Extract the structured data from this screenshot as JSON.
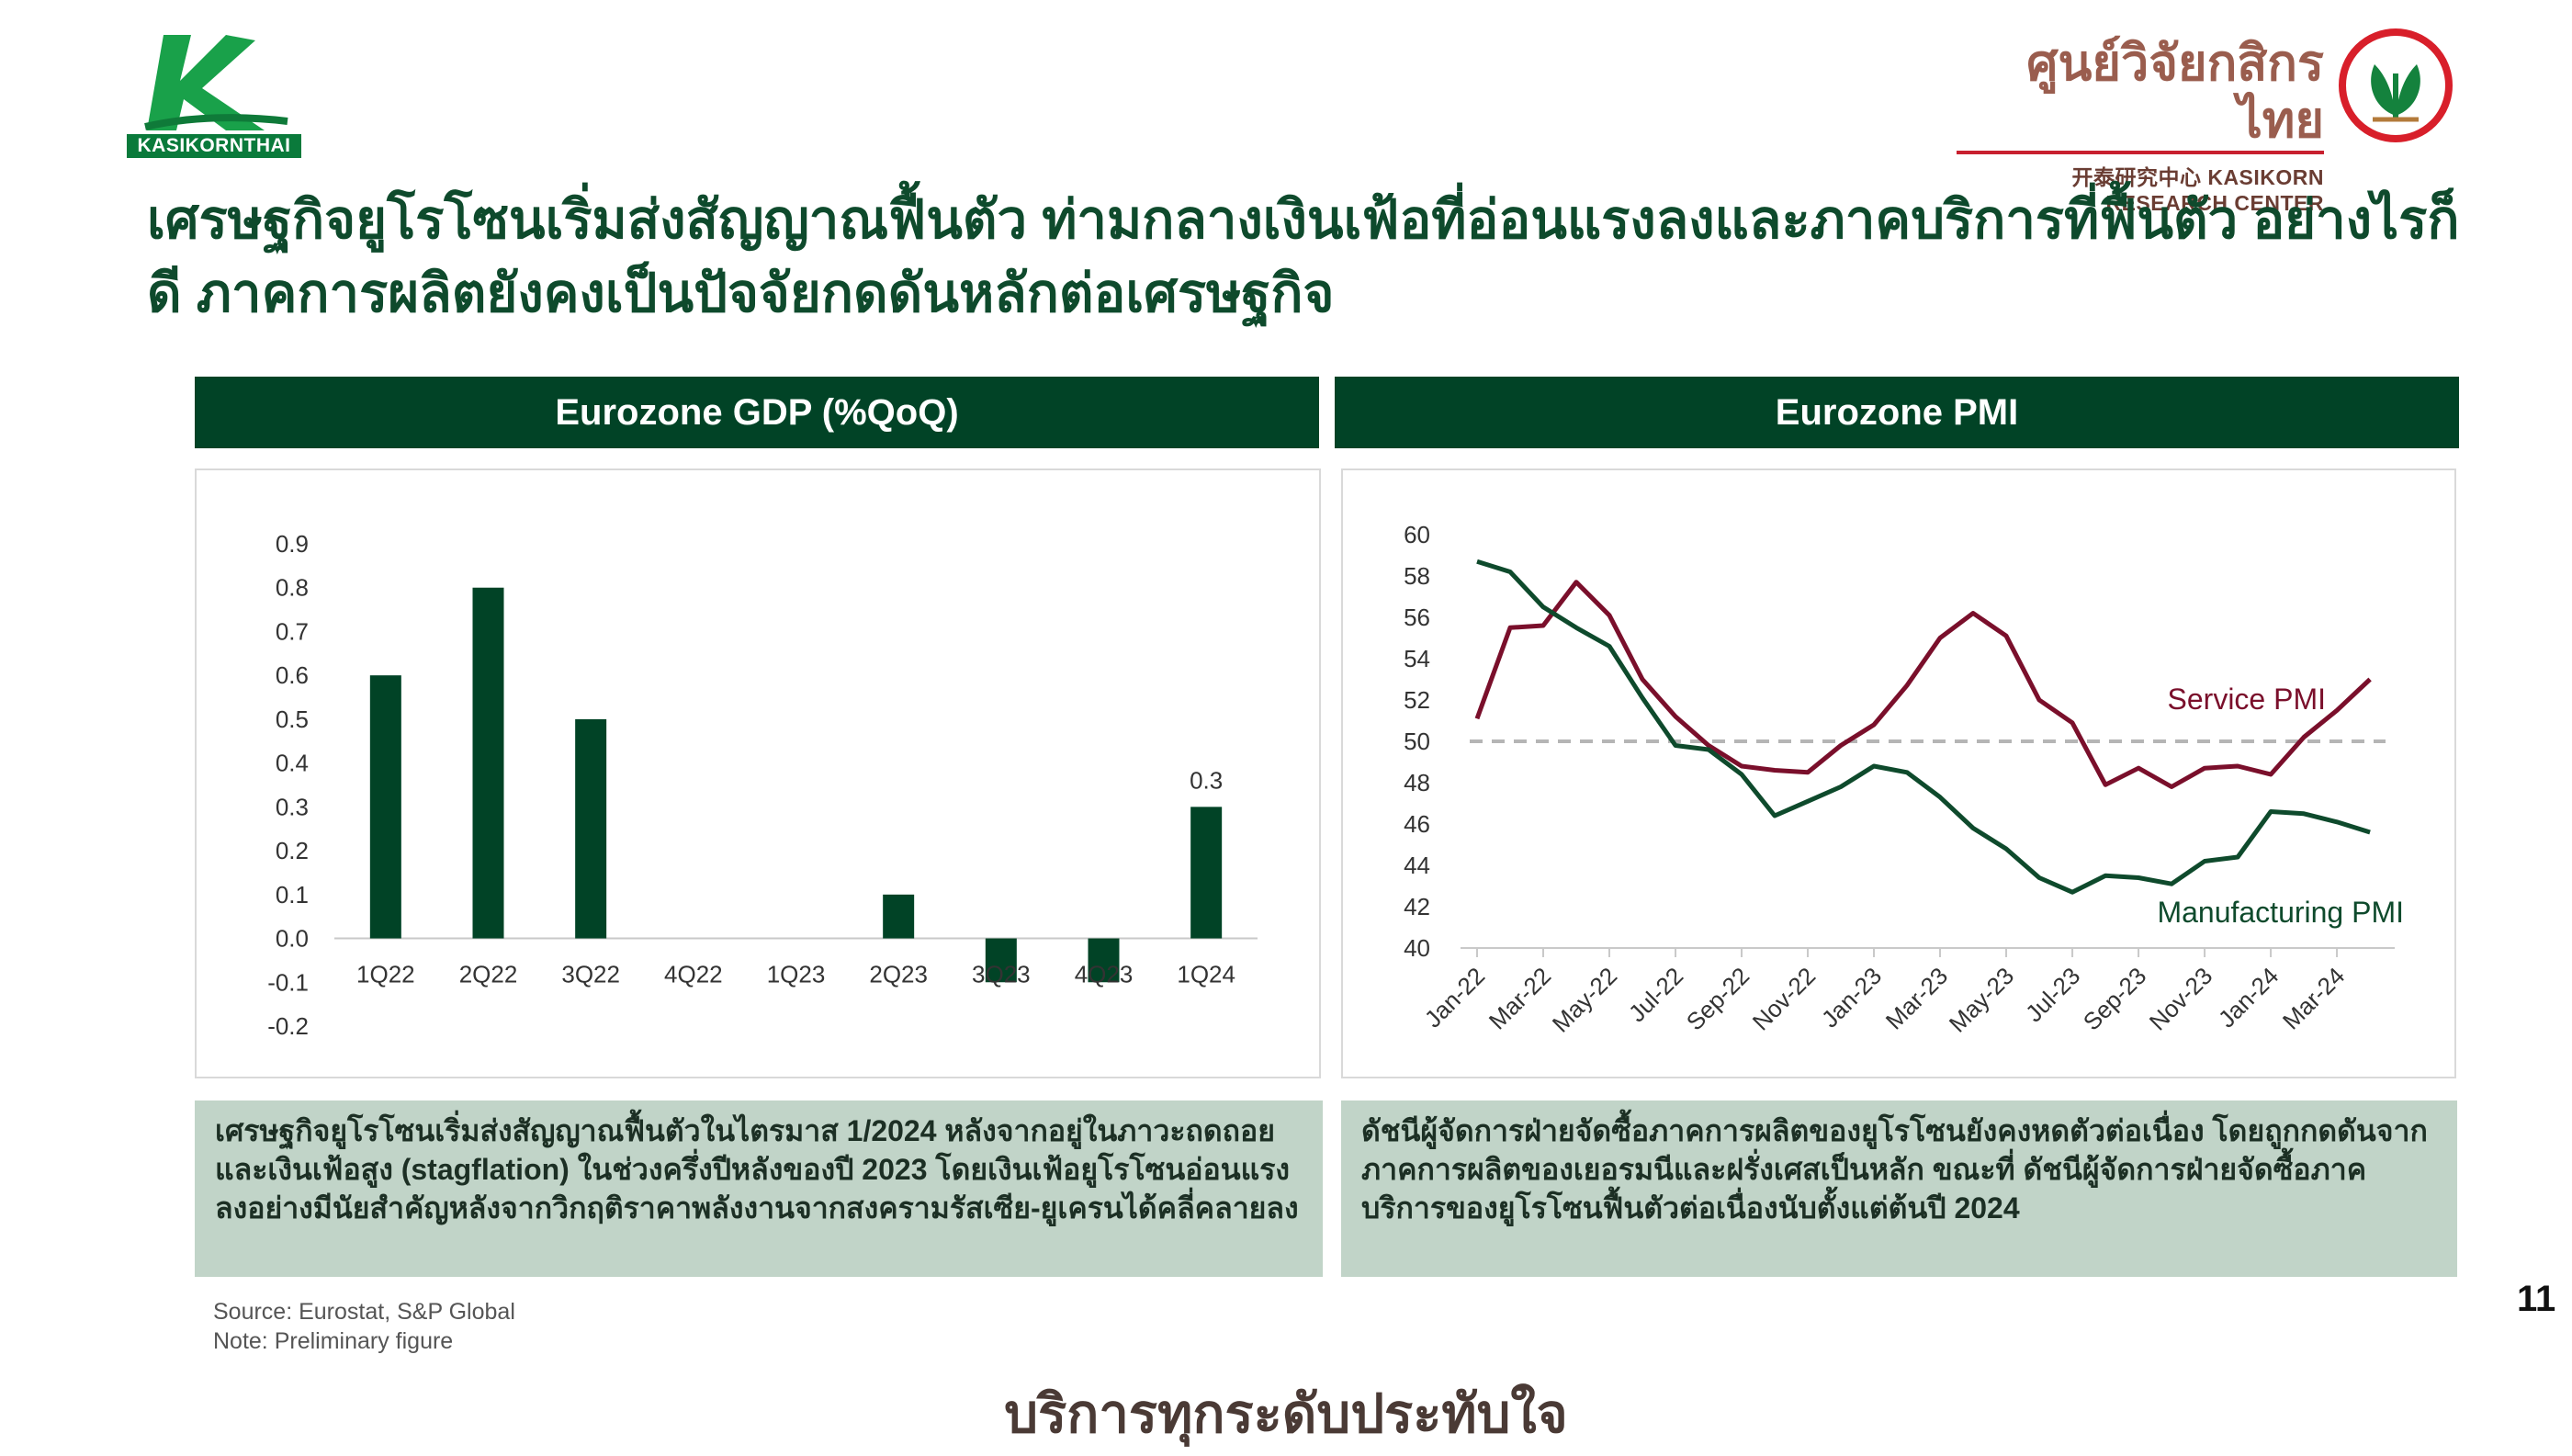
{
  "brand": {
    "left_logo_text": "KASIKORNTHAI",
    "right_logo_thai": "ศูนย์วิจัยกสิกรไทย",
    "right_logo_english": "开泰研究中心 KASIKORN RESEARCH CENTER",
    "colors": {
      "primary_green": "#014326",
      "accent_red": "#c8202f",
      "note_bg": "#c1d4c8"
    }
  },
  "title": "เศรษฐกิจยูโรโซนเริ่มส่งสัญญาณฟื้นตัว ท่ามกลางเงินเฟ้อที่อ่อนแรงลงและภาคบริการที่ฟื้นตัว อย่างไรก็ดี ภาคการผลิตยังคงเป็นปัจจัยกดดันหลักต่อเศรษฐกิจ",
  "panels": {
    "gdp": {
      "header": "Eurozone GDP (%QoQ)",
      "note": "เศรษฐกิจยูโรโซนเริ่มส่งสัญญาณฟื้นตัวในไตรมาส 1/2024 หลังจากอยู่ในภาวะถดถอยและเงินเฟ้อสูง (stagflation) ในช่วงครึ่งปีหลังของปี 2023 โดยเงินเฟ้อยูโรโซนอ่อนแรงลงอย่างมีนัยสำคัญหลังจากวิกฤติราคาพลังงานจากสงครามรัสเซีย-ยูเครนได้คลี่คลายลง"
    },
    "pmi": {
      "header": "Eurozone PMI",
      "note": "ดัชนีผู้จัดการฝ่ายจัดซื้อภาคการผลิตของยูโรโซนยังคงหดตัวต่อเนื่อง โดยถูกกดดันจากภาคการผลิตของเยอรมนีและฝรั่งเศสเป็นหลัก ขณะที่ ดัชนีผู้จัดการฝ่ายจัดซื้อภาคบริการของยูโรโซนฟื้นตัวต่อเนื่องนับตั้งแต่ต้นปี 2024"
    }
  },
  "source_line": "Source: Eurostat, S&P Global",
  "note_line": "Note: Preliminary figure",
  "page_number": "11",
  "footer_slogan": "บริการทุกระดับประทับใจ",
  "chart_data": [
    {
      "type": "bar",
      "categories": [
        "1Q22",
        "2Q22",
        "3Q22",
        "4Q22",
        "1Q23",
        "2Q23",
        "3Q23",
        "4Q23",
        "1Q24"
      ],
      "values": [
        0.6,
        0.8,
        0.5,
        0.0,
        0.0,
        0.1,
        -0.1,
        -0.1,
        0.3
      ],
      "data_labels": [
        {
          "category": "1Q24",
          "text": "0.3"
        }
      ],
      "yticks": [
        "0.9",
        "0.8",
        "0.7",
        "0.6",
        "0.5",
        "0.4",
        "0.3",
        "0.2",
        "0.1",
        "0.0",
        "-0.1",
        "-0.2"
      ],
      "ylim": [
        -0.2,
        0.9
      ],
      "color": "#014326",
      "grid": false
    },
    {
      "type": "line",
      "x": [
        "Jan-22",
        "Feb-22",
        "Mar-22",
        "Apr-22",
        "May-22",
        "Jun-22",
        "Jul-22",
        "Aug-22",
        "Sep-22",
        "Oct-22",
        "Nov-22",
        "Dec-22",
        "Jan-23",
        "Feb-23",
        "Mar-23",
        "Apr-23",
        "May-23",
        "Jun-23",
        "Jul-23",
        "Aug-23",
        "Sep-23",
        "Oct-23",
        "Nov-23",
        "Dec-23",
        "Jan-24",
        "Feb-24",
        "Mar-24",
        "Apr-24"
      ],
      "xticks": [
        "Jan-22",
        "Mar-22",
        "May-22",
        "Jul-22",
        "Sep-22",
        "Nov-22",
        "Jan-23",
        "Mar-23",
        "May-23",
        "Jul-23",
        "Sep-23",
        "Nov-23",
        "Jan-24",
        "Mar-24"
      ],
      "series": [
        {
          "name": "Service PMI",
          "color": "#7a0f2b",
          "values": [
            51.1,
            55.5,
            55.6,
            57.7,
            56.1,
            53.0,
            51.2,
            49.8,
            48.8,
            48.6,
            48.5,
            49.8,
            50.8,
            52.7,
            55.0,
            56.2,
            55.1,
            52.0,
            50.9,
            47.9,
            48.7,
            47.8,
            48.7,
            48.8,
            48.4,
            50.2,
            51.5,
            53.0
          ]
        },
        {
          "name": "Manufacturing PMI",
          "color": "#0e4a2c",
          "values": [
            58.7,
            58.2,
            56.5,
            55.5,
            54.6,
            52.1,
            49.8,
            49.6,
            48.4,
            46.4,
            47.1,
            47.8,
            48.8,
            48.5,
            47.3,
            45.8,
            44.8,
            43.4,
            42.7,
            43.5,
            43.4,
            43.1,
            44.2,
            44.4,
            46.6,
            46.5,
            46.1,
            45.6
          ]
        }
      ],
      "reference_line": {
        "value": 50,
        "style": "dashed",
        "color": "#b5b5b5"
      },
      "yticks": [
        "60",
        "58",
        "56",
        "54",
        "52",
        "50",
        "48",
        "46",
        "44",
        "42",
        "40"
      ],
      "ylim": [
        40,
        60
      ],
      "grid": false
    }
  ]
}
